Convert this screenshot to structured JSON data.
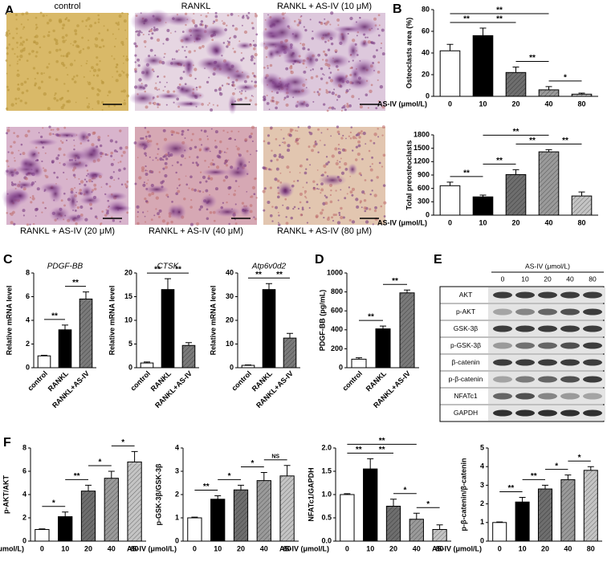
{
  "panel_labels": [
    "A",
    "B",
    "C",
    "D",
    "E",
    "F"
  ],
  "micrographs": {
    "captions": [
      "control",
      "RANKL",
      "RANKL + AS-IV (10 μM)",
      "RANKL + AS-IV (20 μM)",
      "RANKL + AS-IV (40 μM)",
      "RANKL + AS-IV (80 μM)"
    ]
  },
  "blot": {
    "header": "AS-IV (μmol/L)",
    "lanes": [
      "0",
      "10",
      "20",
      "40",
      "80"
    ],
    "rows": [
      "AKT",
      "p-AKT",
      "GSK-3β",
      "p-GSK-3β",
      "β-catenin",
      "p-β-catenin",
      "NFATc1",
      "GAPDH"
    ]
  },
  "chart_data": [
    {
      "type": "bar",
      "y_label": "Osteoclasts area (%)",
      "x_label": "AS-IV (μmol/L)",
      "categories": [
        "0",
        "10",
        "20",
        "40",
        "80"
      ],
      "values": [
        42,
        56,
        22,
        6,
        2
      ],
      "errors": [
        6,
        7,
        5,
        3,
        1
      ],
      "colors": [
        "#ffffff",
        "#000000",
        "#6e6e6e",
        "#9a9a9a",
        "#c4c4c4"
      ],
      "ylim": [
        0,
        80
      ],
      "yticks": [
        0,
        20,
        40,
        60,
        80
      ],
      "significance": [
        {
          "label": "**",
          "from": "0",
          "to": "10"
        },
        {
          "label": "**",
          "from": "10",
          "to": "20"
        },
        {
          "label": "**",
          "from": "20",
          "to": "40"
        },
        {
          "label": "*",
          "from": "40",
          "to": "80"
        },
        {
          "label": "**",
          "from": "0",
          "to": "40"
        }
      ]
    },
    {
      "type": "bar",
      "y_label": "Total preosteoclasts",
      "x_label": "AS-IV (μmol/L)",
      "categories": [
        "0",
        "10",
        "20",
        "40",
        "80"
      ],
      "values": [
        660,
        410,
        910,
        1420,
        430
      ],
      "errors": [
        80,
        40,
        110,
        50,
        90
      ],
      "colors": [
        "#ffffff",
        "#000000",
        "#6e6e6e",
        "#9a9a9a",
        "#c4c4c4"
      ],
      "ylim": [
        0,
        1800
      ],
      "yticks": [
        0,
        300,
        600,
        900,
        1200,
        1500,
        1800
      ],
      "significance": [
        {
          "label": "**",
          "from": "0",
          "to": "10"
        },
        {
          "label": "**",
          "from": "10",
          "to": "20"
        },
        {
          "label": "**",
          "from": "40",
          "to": "80"
        },
        {
          "label": "**",
          "from": "20",
          "to": "40"
        },
        {
          "label": "**",
          "from": "10",
          "to": "40"
        }
      ]
    },
    {
      "type": "bar",
      "title": "PDGF-BB",
      "y_label": "Relative mRNA level",
      "categories": [
        "control",
        "RANKL",
        "RANKL+AS-IV"
      ],
      "values": [
        1,
        3.2,
        5.8
      ],
      "errors": [
        0.05,
        0.4,
        0.6
      ],
      "colors": [
        "#ffffff",
        "#000000",
        "#7a7a7a"
      ],
      "ylim": [
        0,
        8
      ],
      "yticks": [
        0,
        2,
        4,
        6,
        8
      ],
      "significance": [
        {
          "label": "**",
          "from": "control",
          "to": "RANKL"
        },
        {
          "label": "**",
          "from": "RANKL",
          "to": "RANKL+AS-IV"
        }
      ]
    },
    {
      "type": "bar",
      "title": "CTSK",
      "y_label": "Relative mRNA level",
      "categories": [
        "control",
        "RANKL",
        "RANKL+AS-IV"
      ],
      "values": [
        1,
        16.5,
        4.7
      ],
      "errors": [
        0.2,
        2.3,
        0.6
      ],
      "colors": [
        "#ffffff",
        "#000000",
        "#7a7a7a"
      ],
      "ylim": [
        0,
        20
      ],
      "yticks": [
        0,
        5,
        10,
        15,
        20
      ],
      "significance": [
        {
          "label": "**",
          "from": "control",
          "to": "RANKL"
        },
        {
          "label": "**",
          "from": "RANKL",
          "to": "RANKL+AS-IV"
        }
      ]
    },
    {
      "type": "bar",
      "title": "Atp6v0d2",
      "y_label": "Relative mRNA level",
      "categories": [
        "control",
        "RANKL",
        "RANKL+AS-IV"
      ],
      "values": [
        1,
        33,
        12.5
      ],
      "errors": [
        0.2,
        2.5,
        2
      ],
      "colors": [
        "#ffffff",
        "#000000",
        "#7a7a7a"
      ],
      "ylim": [
        0,
        40
      ],
      "yticks": [
        0,
        10,
        20,
        30,
        40
      ],
      "significance": [
        {
          "label": "**",
          "from": "control",
          "to": "RANKL"
        },
        {
          "label": "**",
          "from": "RANKL",
          "to": "RANKL+AS-IV"
        }
      ]
    },
    {
      "type": "bar",
      "y_label": "PDGF-BB (pg/mL)",
      "categories": [
        "control",
        "RANKL",
        "RANKL+AS-IV"
      ],
      "values": [
        90,
        410,
        790
      ],
      "errors": [
        15,
        30,
        30
      ],
      "colors": [
        "#ffffff",
        "#000000",
        "#7a7a7a"
      ],
      "ylim": [
        0,
        1000
      ],
      "yticks": [
        0,
        200,
        400,
        600,
        800,
        1000
      ],
      "significance": [
        {
          "label": "**",
          "from": "control",
          "to": "RANKL"
        },
        {
          "label": "**",
          "from": "RANKL",
          "to": "RANKL+AS-IV"
        }
      ]
    },
    {
      "type": "bar",
      "y_label": "p-AKT/AKT",
      "x_label": "AS-IV (μmol/L)",
      "categories": [
        "0",
        "10",
        "20",
        "40",
        "80"
      ],
      "values": [
        1,
        2.1,
        4.3,
        5.4,
        6.8
      ],
      "errors": [
        0.05,
        0.4,
        0.5,
        0.6,
        0.9
      ],
      "colors": [
        "#ffffff",
        "#000000",
        "#6e6e6e",
        "#9a9a9a",
        "#c4c4c4"
      ],
      "ylim": [
        0,
        8
      ],
      "yticks": [
        0,
        2,
        4,
        6,
        8
      ],
      "significance": [
        {
          "label": "*",
          "from": "0",
          "to": "10"
        },
        {
          "label": "**",
          "from": "10",
          "to": "20"
        },
        {
          "label": "*",
          "from": "20",
          "to": "40"
        },
        {
          "label": "*",
          "from": "40",
          "to": "80"
        }
      ]
    },
    {
      "type": "bar",
      "y_label": "p-GSK-3β/GSK-3β",
      "x_label": "AS-IV (μmol/L)",
      "categories": [
        "0",
        "10",
        "20",
        "40",
        "80"
      ],
      "values": [
        1,
        1.8,
        2.2,
        2.6,
        2.8
      ],
      "errors": [
        0.03,
        0.15,
        0.2,
        0.35,
        0.45
      ],
      "colors": [
        "#ffffff",
        "#000000",
        "#6e6e6e",
        "#9a9a9a",
        "#c4c4c4"
      ],
      "ylim": [
        0,
        4
      ],
      "yticks": [
        0,
        1,
        2,
        3,
        4
      ],
      "significance": [
        {
          "label": "**",
          "from": "0",
          "to": "10"
        },
        {
          "label": "*",
          "from": "10",
          "to": "20"
        },
        {
          "label": "*",
          "from": "20",
          "to": "40"
        },
        {
          "label": "NS",
          "from": "40",
          "to": "80"
        }
      ]
    },
    {
      "type": "bar",
      "y_label": "NFATc1/GAPDH",
      "x_label": "AS-IV (μmol/L)",
      "categories": [
        "0",
        "10",
        "20",
        "40",
        "80"
      ],
      "values": [
        1,
        1.55,
        0.75,
        0.47,
        0.25
      ],
      "errors": [
        0.02,
        0.22,
        0.15,
        0.13,
        0.1
      ],
      "colors": [
        "#ffffff",
        "#000000",
        "#6e6e6e",
        "#9a9a9a",
        "#c4c4c4"
      ],
      "ylim": [
        0,
        2
      ],
      "yticks": [
        {
          "value": 0,
          "label": "0.0"
        },
        0.5,
        {
          "value": 1,
          "label": "1.0"
        },
        1.5,
        {
          "value": 2,
          "label": "2.0"
        }
      ],
      "significance": [
        {
          "label": "**",
          "from": "0",
          "to": "10"
        },
        {
          "label": "**",
          "from": "10",
          "to": "20"
        },
        {
          "label": "*",
          "from": "20",
          "to": "40"
        },
        {
          "label": "*",
          "from": "40",
          "to": "80"
        },
        {
          "label": "**",
          "from": "0",
          "to": "40"
        }
      ]
    },
    {
      "type": "bar",
      "y_label": "p-β-catenin/β-catenin",
      "x_label": "AS-IV (μmol/L)",
      "categories": [
        "0",
        "10",
        "20",
        "40",
        "80"
      ],
      "values": [
        1,
        2.1,
        2.8,
        3.3,
        3.8
      ],
      "errors": [
        0.03,
        0.25,
        0.2,
        0.25,
        0.2
      ],
      "colors": [
        "#ffffff",
        "#000000",
        "#6e6e6e",
        "#9a9a9a",
        "#c4c4c4"
      ],
      "ylim": [
        0,
        5
      ],
      "yticks": [
        0,
        1,
        2,
        3,
        4,
        5
      ],
      "significance": [
        {
          "label": "**",
          "from": "0",
          "to": "10"
        },
        {
          "label": "**",
          "from": "10",
          "to": "20"
        },
        {
          "label": "*",
          "from": "20",
          "to": "40"
        },
        {
          "label": "*",
          "from": "40",
          "to": "80"
        }
      ]
    }
  ]
}
